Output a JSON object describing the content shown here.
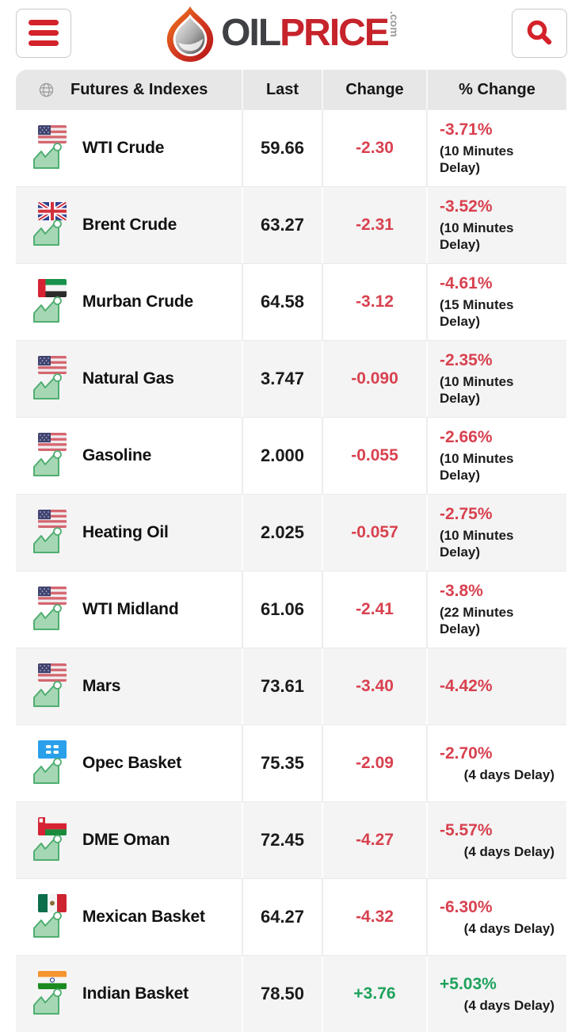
{
  "header": {
    "logo": {
      "part1": "OIL",
      "part2": "PRICE",
      "suffix": ".com"
    }
  },
  "table": {
    "header": {
      "col1": "Futures & Indexes",
      "col2": "Last",
      "col3": "Change",
      "col4": "% Change"
    },
    "rows": [
      {
        "name": "WTI Crude",
        "flag": "us",
        "last": "59.66",
        "change": "-2.30",
        "percent": "-3.71%",
        "delay": "(10 Minutes Delay)",
        "trend": "down",
        "delay_align": "left"
      },
      {
        "name": "Brent Crude",
        "flag": "uk",
        "last": "63.27",
        "change": "-2.31",
        "percent": "-3.52%",
        "delay": "(10 Minutes Delay)",
        "trend": "down",
        "delay_align": "left"
      },
      {
        "name": "Murban Crude",
        "flag": "ae",
        "last": "64.58",
        "change": "-3.12",
        "percent": "-4.61%",
        "delay": "(15 Minutes Delay)",
        "trend": "down",
        "delay_align": "left"
      },
      {
        "name": "Natural Gas",
        "flag": "us",
        "last": "3.747",
        "change": "-0.090",
        "percent": "-2.35%",
        "delay": "(10 Minutes Delay)",
        "trend": "down",
        "delay_align": "left"
      },
      {
        "name": "Gasoline",
        "flag": "us",
        "last": "2.000",
        "change": "-0.055",
        "percent": "-2.66%",
        "delay": "(10 Minutes Delay)",
        "trend": "down",
        "delay_align": "left"
      },
      {
        "name": "Heating Oil",
        "flag": "us",
        "last": "2.025",
        "change": "-0.057",
        "percent": "-2.75%",
        "delay": "(10 Minutes Delay)",
        "trend": "down",
        "delay_align": "left"
      },
      {
        "name": "WTI Midland",
        "flag": "us",
        "last": "61.06",
        "change": "-2.41",
        "percent": "-3.8%",
        "delay": "(22 Minutes Delay)",
        "trend": "down",
        "delay_align": "left"
      },
      {
        "name": "Mars",
        "flag": "us",
        "last": "73.61",
        "change": "-3.40",
        "percent": "-4.42%",
        "delay": "",
        "trend": "down",
        "delay_align": "left"
      },
      {
        "name": "Opec Basket",
        "flag": "opec",
        "last": "75.35",
        "change": "-2.09",
        "percent": "-2.70%",
        "delay": "(4 days Delay)",
        "trend": "down",
        "delay_align": "right"
      },
      {
        "name": "DME Oman",
        "flag": "om",
        "last": "72.45",
        "change": "-4.27",
        "percent": "-5.57%",
        "delay": "(4 days Delay)",
        "trend": "down",
        "delay_align": "right"
      },
      {
        "name": "Mexican Basket",
        "flag": "mx",
        "last": "64.27",
        "change": "-4.32",
        "percent": "-6.30%",
        "delay": "(4 days Delay)",
        "trend": "down",
        "delay_align": "right"
      },
      {
        "name": "Indian Basket",
        "flag": "in",
        "last": "78.50",
        "change": "+3.76",
        "percent": "+5.03%",
        "delay": "(4 days Delay)",
        "trend": "up",
        "delay_align": "right"
      }
    ]
  },
  "colors": {
    "negative": "#d8414f",
    "positive": "#1fa25c",
    "accent_red": "#d3222a"
  }
}
